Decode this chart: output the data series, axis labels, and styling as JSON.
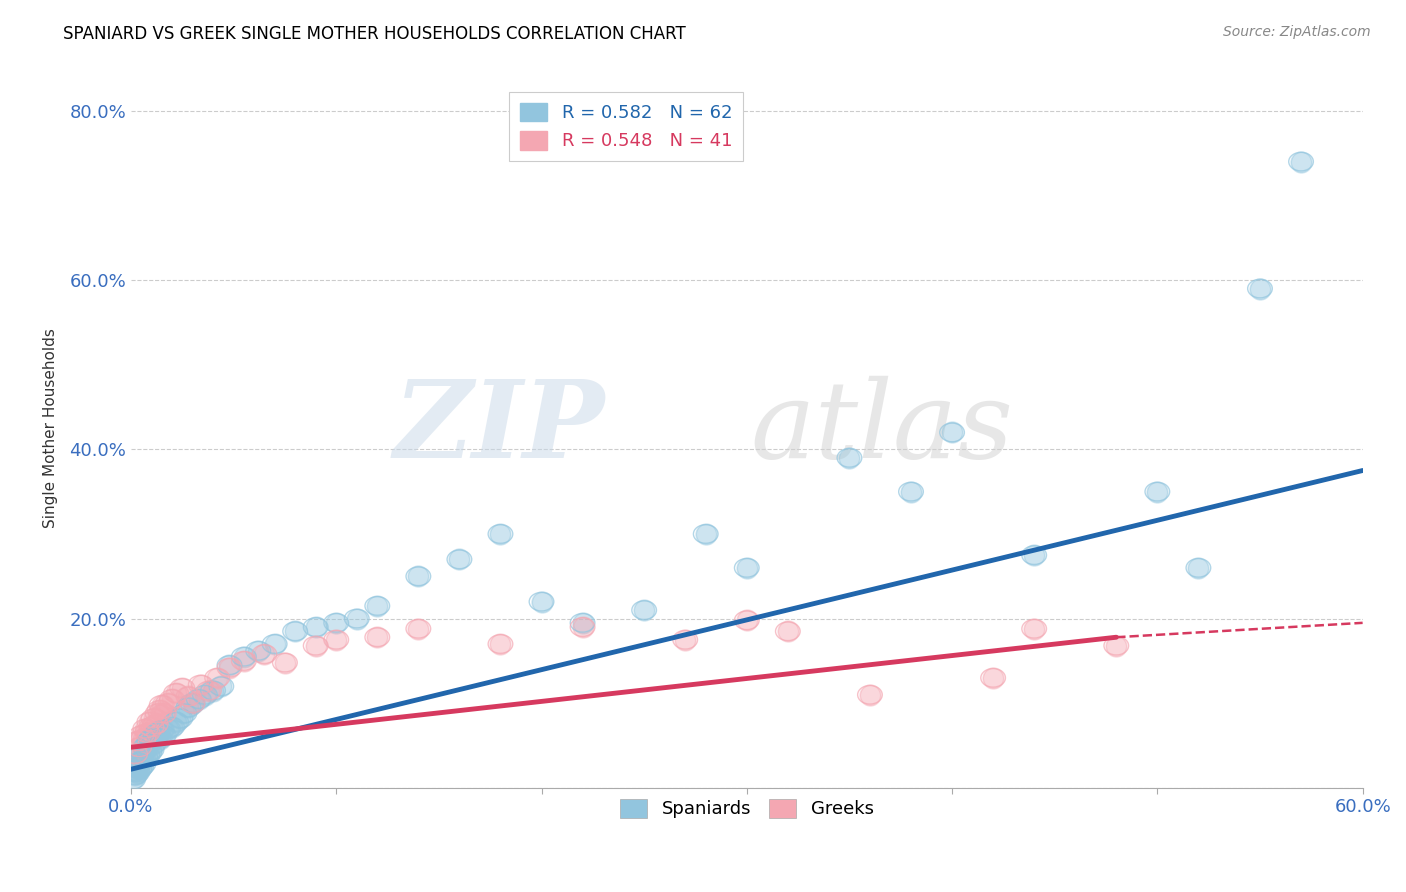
{
  "title": "SPANIARD VS GREEK SINGLE MOTHER HOUSEHOLDS CORRELATION CHART",
  "source": "Source: ZipAtlas.com",
  "ylabel": "Single Mother Households",
  "xlim": [
    0.0,
    0.6
  ],
  "ylim": [
    0.0,
    0.85
  ],
  "xticks": [
    0.0,
    0.1,
    0.2,
    0.3,
    0.4,
    0.5,
    0.6
  ],
  "xticklabels": [
    "0.0%",
    "",
    "",
    "",
    "",
    "",
    "60.0%"
  ],
  "yticks": [
    0.0,
    0.2,
    0.4,
    0.6,
    0.8
  ],
  "yticklabels": [
    "",
    "20.0%",
    "40.0%",
    "60.0%",
    "80.0%"
  ],
  "spaniard_color": "#92C5DE",
  "greek_color": "#F4A7B2",
  "spaniard_line_color": "#2166AC",
  "greek_line_color": "#D6395F",
  "watermark_zip": "ZIP",
  "watermark_atlas": "atlas",
  "background_color": "#ffffff",
  "grid_color": "#cccccc",
  "spaniard_line_x0": 0.0,
  "spaniard_line_y0": 0.022,
  "spaniard_line_x1": 0.6,
  "spaniard_line_y1": 0.375,
  "greek_line_x0": 0.0,
  "greek_line_y0": 0.048,
  "greek_line_solid_x1": 0.48,
  "greek_line_solid_y1": 0.178,
  "greek_line_dash_x1": 0.6,
  "greek_line_dash_y1": 0.195,
  "spaniard_x": [
    0.001,
    0.002,
    0.002,
    0.003,
    0.003,
    0.004,
    0.004,
    0.005,
    0.005,
    0.005,
    0.006,
    0.006,
    0.007,
    0.007,
    0.008,
    0.008,
    0.009,
    0.009,
    0.01,
    0.01,
    0.011,
    0.012,
    0.013,
    0.014,
    0.015,
    0.016,
    0.018,
    0.02,
    0.022,
    0.024,
    0.026,
    0.028,
    0.03,
    0.033,
    0.036,
    0.04,
    0.044,
    0.048,
    0.055,
    0.062,
    0.07,
    0.08,
    0.09,
    0.1,
    0.11,
    0.12,
    0.14,
    0.16,
    0.18,
    0.2,
    0.22,
    0.25,
    0.28,
    0.3,
    0.35,
    0.38,
    0.4,
    0.44,
    0.5,
    0.52,
    0.55,
    0.57
  ],
  "spaniard_y": [
    0.01,
    0.015,
    0.02,
    0.018,
    0.025,
    0.022,
    0.03,
    0.025,
    0.032,
    0.038,
    0.028,
    0.042,
    0.035,
    0.048,
    0.038,
    0.05,
    0.042,
    0.055,
    0.045,
    0.058,
    0.052,
    0.06,
    0.065,
    0.058,
    0.068,
    0.062,
    0.07,
    0.072,
    0.078,
    0.082,
    0.088,
    0.095,
    0.1,
    0.105,
    0.11,
    0.115,
    0.12,
    0.145,
    0.155,
    0.162,
    0.17,
    0.185,
    0.19,
    0.195,
    0.2,
    0.215,
    0.25,
    0.27,
    0.3,
    0.22,
    0.195,
    0.21,
    0.3,
    0.26,
    0.39,
    0.35,
    0.42,
    0.275,
    0.35,
    0.26,
    0.59,
    0.74
  ],
  "greek_x": [
    0.002,
    0.003,
    0.004,
    0.005,
    0.006,
    0.007,
    0.008,
    0.009,
    0.01,
    0.011,
    0.012,
    0.013,
    0.014,
    0.015,
    0.016,
    0.018,
    0.02,
    0.022,
    0.025,
    0.028,
    0.03,
    0.034,
    0.038,
    0.042,
    0.048,
    0.055,
    0.065,
    0.075,
    0.09,
    0.1,
    0.12,
    0.14,
    0.18,
    0.22,
    0.27,
    0.3,
    0.32,
    0.36,
    0.42,
    0.44,
    0.48
  ],
  "greek_y": [
    0.04,
    0.055,
    0.048,
    0.062,
    0.058,
    0.07,
    0.065,
    0.078,
    0.072,
    0.082,
    0.075,
    0.088,
    0.092,
    0.098,
    0.088,
    0.1,
    0.105,
    0.112,
    0.118,
    0.108,
    0.1,
    0.122,
    0.115,
    0.13,
    0.142,
    0.15,
    0.158,
    0.148,
    0.168,
    0.175,
    0.178,
    0.188,
    0.17,
    0.19,
    0.175,
    0.198,
    0.185,
    0.11,
    0.13,
    0.188,
    0.168
  ]
}
